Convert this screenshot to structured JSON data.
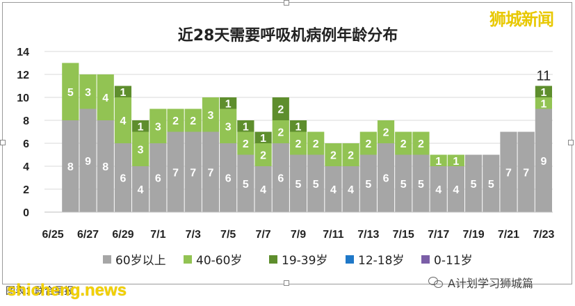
{
  "chart_data": {
    "type": "bar",
    "stacked": true,
    "title": "近28天需要呼吸机病例年龄分布",
    "categories": [
      "6/25",
      "6/26",
      "6/27",
      "6/28",
      "6/29",
      "6/30",
      "7/1",
      "7/2",
      "7/3",
      "7/4",
      "7/5",
      "7/6",
      "7/7",
      "7/8",
      "7/9",
      "7/10",
      "7/11",
      "7/12",
      "7/13",
      "7/14",
      "7/15",
      "7/16",
      "7/17",
      "7/18",
      "7/19",
      "7/20",
      "7/21",
      "7/22",
      "7/23"
    ],
    "x_tick_labels": [
      "6/25",
      "6/27",
      "6/29",
      "7/1",
      "7/3",
      "7/5",
      "7/7",
      "7/9",
      "7/11",
      "7/13",
      "7/15",
      "7/17",
      "7/19",
      "7/21",
      "7/23"
    ],
    "ylim": [
      0,
      14
    ],
    "yticks": [
      0,
      2,
      4,
      6,
      8,
      10,
      12,
      14
    ],
    "grid": true,
    "legend_position": "bottom",
    "series": [
      {
        "name": "60岁以上",
        "color": "#a6a6a6",
        "values": [
          0,
          8,
          9,
          8,
          6,
          4,
          6,
          7,
          7,
          7,
          6,
          5,
          4,
          6,
          5,
          5,
          4,
          4,
          5,
          6,
          5,
          5,
          4,
          4,
          5,
          5,
          7,
          7,
          9
        ]
      },
      {
        "name": "40-60岁",
        "color": "#92c353",
        "values": [
          0,
          5,
          3,
          4,
          4,
          3,
          3,
          2,
          2,
          3,
          3,
          2,
          2,
          2,
          2,
          2,
          2,
          2,
          2,
          2,
          2,
          2,
          1,
          1,
          0,
          0,
          0,
          0,
          1
        ]
      },
      {
        "name": "19-39岁",
        "color": "#5e8e2d",
        "values": [
          0,
          0,
          0,
          0,
          1,
          1,
          0,
          0,
          0,
          0,
          1,
          1,
          1,
          2,
          1,
          0,
          0,
          0,
          0,
          0,
          0,
          0,
          0,
          0,
          0,
          0,
          0,
          0,
          1
        ]
      },
      {
        "name": "12-18岁",
        "color": "#1f78c8",
        "values": [
          0,
          0,
          0,
          0,
          0,
          0,
          0,
          0,
          0,
          0,
          0,
          0,
          0,
          0,
          0,
          0,
          0,
          0,
          0,
          0,
          0,
          0,
          0,
          0,
          0,
          0,
          0,
          0,
          0
        ]
      },
      {
        "name": "0-11岁",
        "color": "#7b5ea7",
        "values": [
          0,
          0,
          0,
          0,
          0,
          0,
          0,
          0,
          0,
          0,
          0,
          0,
          0,
          0,
          0,
          0,
          0,
          0,
          0,
          0,
          0,
          0,
          0,
          0,
          0,
          0,
          0,
          0,
          0
        ]
      }
    ],
    "total_labels": [
      {
        "category": "7/23",
        "text": "11"
      }
    ]
  },
  "watermark_top": "狮城新闻",
  "source_text": "图表：联合早报",
  "site_watermark": "shicheng.news",
  "wechat_label": "A计划学习狮城篇",
  "wechat_icon": "wechat-icon"
}
